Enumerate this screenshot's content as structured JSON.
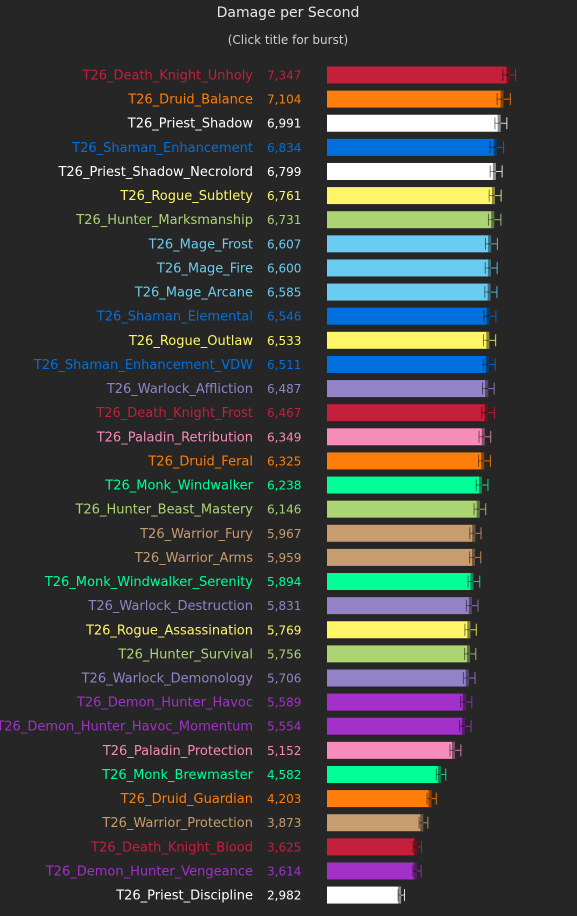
{
  "chart_data": {
    "type": "bar",
    "orientation": "horizontal",
    "title": "Damage per Second",
    "subtitle": "(Click title for burst)",
    "xlim": [
      0,
      7600
    ],
    "grid": false,
    "categories": [
      "T26_Death_Knight_Unholy",
      "T26_Druid_Balance",
      "T26_Priest_Shadow",
      "T26_Shaman_Enhancement",
      "T26_Priest_Shadow_Necrolord",
      "T26_Rogue_Subtlety",
      "T26_Hunter_Marksmanship",
      "T26_Mage_Frost",
      "T26_Mage_Fire",
      "T26_Mage_Arcane",
      "T26_Shaman_Elemental",
      "T26_Rogue_Outlaw",
      "T26_Shaman_Enhancement_VDW",
      "T26_Warlock_Affliction",
      "T26_Death_Knight_Frost",
      "T26_Paladin_Retribution",
      "T26_Druid_Feral",
      "T26_Monk_Windwalker",
      "T26_Hunter_Beast_Mastery",
      "T26_Warrior_Fury",
      "T26_Warrior_Arms",
      "T26_Monk_Windwalker_Serenity",
      "T26_Warlock_Destruction",
      "T26_Rogue_Assassination",
      "T26_Hunter_Survival",
      "T26_Warlock_Demonology",
      "T26_Demon_Hunter_Havoc",
      "T26_Demon_Hunter_Havoc_Momentum",
      "T26_Paladin_Protection",
      "T26_Monk_Brewmaster",
      "T26_Druid_Guardian",
      "T26_Warrior_Protection",
      "T26_Death_Knight_Blood",
      "T26_Demon_Hunter_Vengeance",
      "T26_Priest_Discipline"
    ],
    "values": [
      7347,
      7104,
      6991,
      6834,
      6799,
      6761,
      6731,
      6607,
      6600,
      6585,
      6546,
      6533,
      6511,
      6487,
      6467,
      6349,
      6325,
      6238,
      6146,
      5967,
      5959,
      5894,
      5831,
      5769,
      5756,
      5706,
      5589,
      5554,
      5152,
      4582,
      4203,
      3873,
      3625,
      3614,
      2982
    ],
    "value_labels": [
      "7,347",
      "7,104",
      "6,991",
      "6,834",
      "6,799",
      "6,761",
      "6,731",
      "6,607",
      "6,600",
      "6,585",
      "6,546",
      "6,533",
      "6,511",
      "6,487",
      "6,467",
      "6,349",
      "6,325",
      "6,238",
      "6,146",
      "5,967",
      "5,959",
      "5,894",
      "5,831",
      "5,769",
      "5,756",
      "5,706",
      "5,589",
      "5,554",
      "5,152",
      "4,582",
      "4,203",
      "3,873",
      "3,625",
      "3,614",
      "2,982"
    ],
    "error_low": [
      7080,
      6850,
      6760,
      6560,
      6570,
      6530,
      6500,
      6380,
      6370,
      6350,
      6320,
      6300,
      6290,
      6260,
      6230,
      6120,
      6100,
      6010,
      5920,
      5750,
      5740,
      5680,
      5610,
      5550,
      5540,
      5490,
      5380,
      5340,
      4950,
      4400,
      4030,
      3710,
      3470,
      3460,
      2860
    ],
    "error_high": [
      7590,
      7380,
      7240,
      7110,
      7050,
      7010,
      7000,
      6860,
      6850,
      6840,
      6800,
      6790,
      6770,
      6730,
      6740,
      6590,
      6580,
      6480,
      6390,
      6200,
      6190,
      6150,
      6080,
      6010,
      5990,
      5960,
      5830,
      5800,
      5390,
      4780,
      4400,
      4060,
      3800,
      3790,
      3120
    ],
    "colors": [
      "#c41f3b",
      "#ff7d0a",
      "#ffffff",
      "#0070de",
      "#ffffff",
      "#fff569",
      "#abd473",
      "#69ccf0",
      "#69ccf0",
      "#69ccf0",
      "#0070de",
      "#fff569",
      "#0070de",
      "#9482c9",
      "#c41f3b",
      "#f58cba",
      "#ff7d0a",
      "#00ff96",
      "#abd473",
      "#c79c6e",
      "#c79c6e",
      "#00ff96",
      "#9482c9",
      "#fff569",
      "#abd473",
      "#9482c9",
      "#a330c9",
      "#a330c9",
      "#f58cba",
      "#00ff96",
      "#ff7d0a",
      "#c79c6e",
      "#c41f3b",
      "#a330c9",
      "#ffffff"
    ]
  }
}
